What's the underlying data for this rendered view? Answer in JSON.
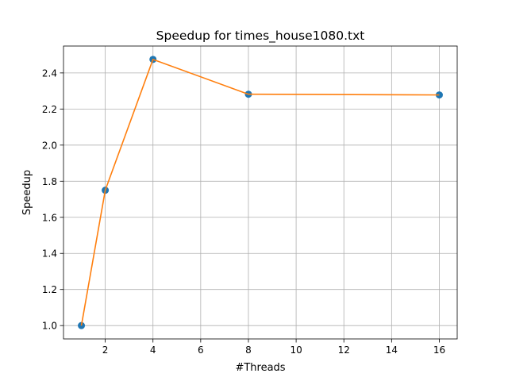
{
  "chart_data": {
    "type": "line",
    "title": "Speedup for times_house1080.txt",
    "xlabel": "#Threads",
    "ylabel": "Speedup",
    "xlim": [
      0.25,
      16.75
    ],
    "ylim": [
      0.926,
      2.549
    ],
    "xticks": [
      2,
      4,
      6,
      8,
      10,
      12,
      14,
      16
    ],
    "yticks": [
      1.0,
      1.2,
      1.4,
      1.6,
      1.8,
      2.0,
      2.2,
      2.4
    ],
    "grid": true,
    "series": [
      {
        "x": [
          1,
          2,
          4,
          8,
          16
        ],
        "values": [
          1.0,
          1.75,
          2.475,
          2.282,
          2.278
        ],
        "marker": "circle",
        "marker_color": "#1f77b4",
        "line_color": "#ff7f0e"
      }
    ]
  }
}
